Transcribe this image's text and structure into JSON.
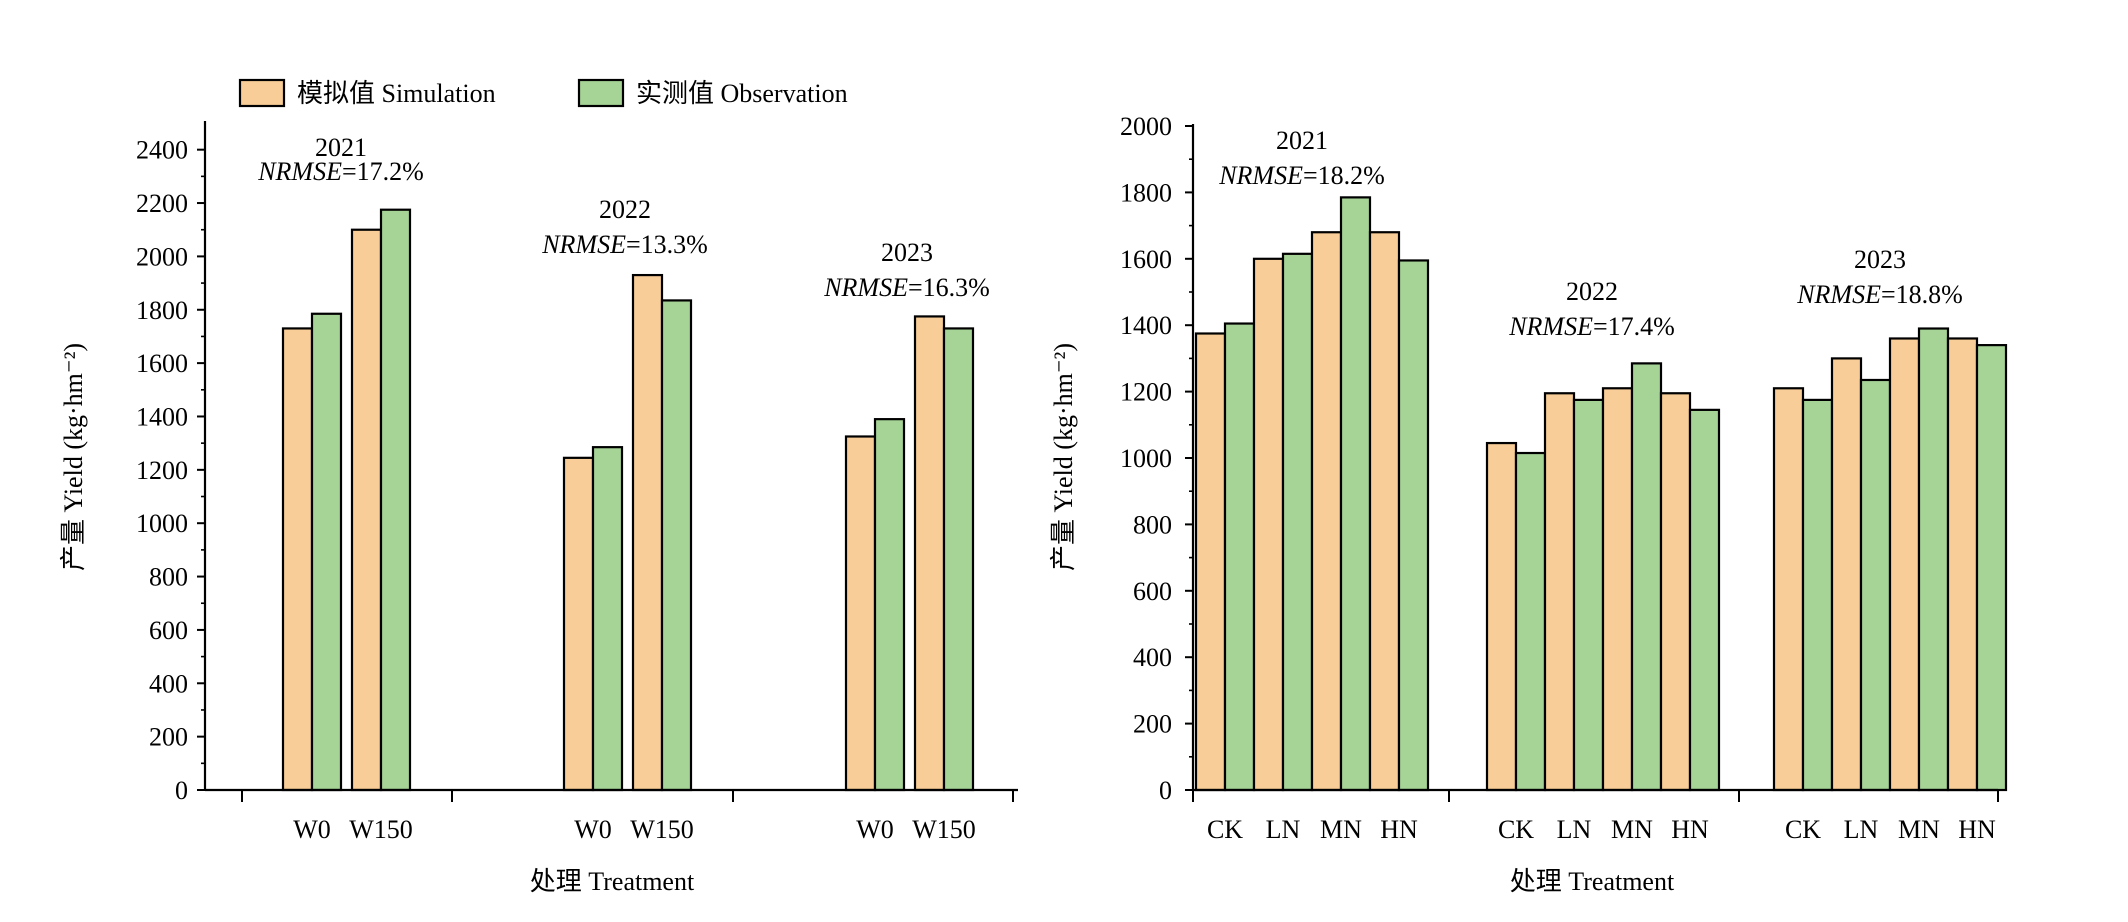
{
  "legend": {
    "simulation": "模拟值 Simulation",
    "observation": "实测值 Observation"
  },
  "colors": {
    "simulation": "#f8cd97",
    "observation": "#a6d496",
    "stroke": "#000000"
  },
  "chart_data": [
    {
      "type": "bar",
      "ylabel": "产量 Yield (kg·hm⁻²)",
      "xlabel": "处理 Treatment",
      "ylim": [
        0,
        2500
      ],
      "yticks": [
        0,
        200,
        400,
        600,
        800,
        1000,
        1200,
        1400,
        1600,
        1800,
        2000,
        2200,
        2400
      ],
      "legend_position": "top-left",
      "series": [
        {
          "name": "模拟值 Simulation",
          "key": "simulation"
        },
        {
          "name": "实测值 Observation",
          "key": "observation"
        }
      ],
      "groups": [
        {
          "year": "2021",
          "nrmse_label": "NRMSE",
          "nrmse_value": "=17.2%",
          "categories": [
            "W0",
            "W150"
          ],
          "simulation": [
            1730,
            2100
          ],
          "observation": [
            1785,
            2175
          ]
        },
        {
          "year": "2022",
          "nrmse_label": "NRMSE",
          "nrmse_value": "=13.3%",
          "categories": [
            "W0",
            "W150"
          ],
          "simulation": [
            1245,
            1930
          ],
          "observation": [
            1285,
            1835
          ]
        },
        {
          "year": "2023",
          "nrmse_label": "NRMSE",
          "nrmse_value": "=16.3%",
          "categories": [
            "W0",
            "W150"
          ],
          "simulation": [
            1325,
            1775
          ],
          "observation": [
            1390,
            1730
          ]
        }
      ]
    },
    {
      "type": "bar",
      "ylabel": "产量 Yield (kg·hm⁻²)",
      "xlabel": "处理 Treatment",
      "ylim": [
        0,
        2000
      ],
      "yticks": [
        0,
        200,
        400,
        600,
        800,
        1000,
        1200,
        1400,
        1600,
        1800,
        2000
      ],
      "series": [
        {
          "name": "模拟值 Simulation",
          "key": "simulation"
        },
        {
          "name": "实测值 Observation",
          "key": "observation"
        }
      ],
      "groups": [
        {
          "year": "2021",
          "nrmse_label": "NRMSE",
          "nrmse_value": "=18.2%",
          "categories": [
            "CK",
            "LN",
            "MN",
            "HN"
          ],
          "simulation": [
            1375,
            1600,
            1680,
            1680
          ],
          "observation": [
            1405,
            1615,
            1785,
            1595
          ]
        },
        {
          "year": "2022",
          "nrmse_label": "NRMSE",
          "nrmse_value": "=17.4%",
          "categories": [
            "CK",
            "LN",
            "MN",
            "HN"
          ],
          "simulation": [
            1045,
            1195,
            1210,
            1195
          ],
          "observation": [
            1015,
            1175,
            1285,
            1145
          ]
        },
        {
          "year": "2023",
          "nrmse_label": "NRMSE",
          "nrmse_value": "=18.8%",
          "categories": [
            "CK",
            "LN",
            "MN",
            "HN"
          ],
          "simulation": [
            1210,
            1300,
            1360,
            1360
          ],
          "observation": [
            1175,
            1235,
            1390,
            1340
          ]
        }
      ]
    }
  ]
}
